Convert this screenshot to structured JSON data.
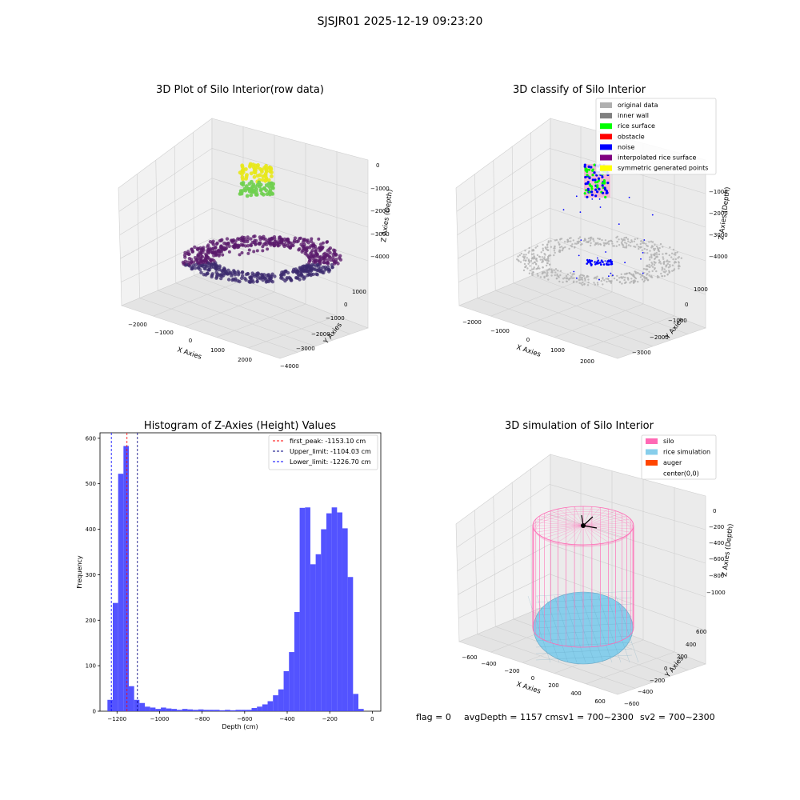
{
  "suptitle": "SJSJR01 2025-12-19 09:23:20",
  "footer": {
    "flag": "flag = 0",
    "avg_depth": "avgDepth = 1157 cmsv1 = 700~2300",
    "sv2": "sv2 = 700~2300"
  },
  "colors": {
    "raw_low": "#3b2a6e",
    "raw_mid": "#5a1a6b",
    "raw_top_green": "#6fcf4f",
    "raw_top_yellow": "#e8e81a",
    "original": "#b0b0b0",
    "inner_wall": "#808080",
    "rice_surface": "#00ff00",
    "obstacle": "#ff0000",
    "noise": "#0000ff",
    "interpolated": "#800080",
    "symmetric": "#ffff00",
    "hist_bar": "#4a4aff",
    "silo": "#ff69b4",
    "rice_sim": "#87ceeb",
    "auger": "#ff4500"
  },
  "chart_data": [
    {
      "type": "scatter3d",
      "title": "3D Plot of Silo Interior(row data)",
      "xlabel": "X Axies",
      "ylabel": "Y Axies",
      "zlabel": "Z Axies (Depth)",
      "x_ticks": [
        "−2000",
        "−1000",
        "0",
        "1000",
        "2000"
      ],
      "y_ticks": [
        "−4000",
        "−3000",
        "−2000",
        "−1000",
        "0",
        "1000"
      ],
      "z_ticks": [
        "0",
        "−1000",
        "−2000",
        "−3000",
        "−4000"
      ],
      "xlim": [
        -2500,
        2500
      ],
      "ylim": [
        -4000,
        1500
      ],
      "zlim": [
        -4500,
        0
      ]
    },
    {
      "type": "scatter3d",
      "title": "3D classify of Silo Interior",
      "xlabel": "X Axies",
      "ylabel": "Y Axies",
      "zlabel": "Z Axies (Depth)",
      "x_ticks": [
        "−2000",
        "−1000",
        "0",
        "1000",
        "2000"
      ],
      "y_ticks": [
        "−3000",
        "−2000",
        "−1000",
        "0",
        "1000"
      ],
      "z_ticks": [
        "−1000",
        "−2000",
        "−3000",
        "−4000"
      ],
      "legend": [
        {
          "label": "original data",
          "color": "#b0b0b0"
        },
        {
          "label": "inner wall",
          "color": "#808080"
        },
        {
          "label": "rice surface",
          "color": "#00ff00"
        },
        {
          "label": "obstacle",
          "color": "#ff0000"
        },
        {
          "label": "noise",
          "color": "#0000ff"
        },
        {
          "label": "interpolated rice surface",
          "color": "#800080"
        },
        {
          "label": "symmetric generated points",
          "color": "#ffff00"
        }
      ],
      "legend_loc": "upper right"
    },
    {
      "type": "bar",
      "title": "Histogram of Z-Axies (Height) Values",
      "xlabel": "Depth (cm)",
      "ylabel": "Frequency",
      "xlim": [
        -1280,
        40
      ],
      "ylim": [
        0,
        612
      ],
      "x_ticks": [
        -1200,
        -1000,
        -800,
        -600,
        -400,
        -200,
        0
      ],
      "x_tick_labels": [
        "−1200",
        "−1000",
        "−800",
        "−600",
        "−400",
        "−200",
        "0"
      ],
      "y_ticks": [
        0,
        100,
        200,
        300,
        400,
        500,
        600
      ],
      "y_tick_labels": [
        "0",
        "100",
        "200",
        "300",
        "400",
        "500",
        "600"
      ],
      "bin_start": -1245,
      "bin_width": 25.1,
      "values": [
        25,
        238,
        522,
        583,
        55,
        25,
        18,
        10,
        8,
        5,
        8,
        6,
        5,
        3,
        5,
        4,
        3,
        4,
        3,
        3,
        3,
        2,
        3,
        2,
        3,
        3,
        3,
        7,
        10,
        15,
        22,
        35,
        48,
        88,
        130,
        218,
        447,
        448,
        323,
        345,
        400,
        435,
        448,
        437,
        402,
        295,
        38,
        5
      ],
      "vlines": [
        {
          "x": -1153.1,
          "color": "#ff0000",
          "label": "first_peak: -1153.10 cm"
        },
        {
          "x": -1104.03,
          "color": "#000080",
          "label": "Upper_limit: -1104.03 cm"
        },
        {
          "x": -1226.7,
          "color": "#0000ff",
          "label": "Lower_limit: -1226.70 cm"
        }
      ],
      "legend_loc": "upper right"
    },
    {
      "type": "surface3d",
      "title": "3D simulation of Silo Interior",
      "xlabel": "X Axies",
      "ylabel": "Y Axies",
      "zlabel": "Z Axies (Depth)",
      "x_ticks": [
        "−600",
        "−400",
        "−200",
        "0",
        "200",
        "400",
        "600"
      ],
      "y_ticks": [
        "−600",
        "−400",
        "−200",
        "0",
        "200",
        "400",
        "600"
      ],
      "z_ticks": [
        "0",
        "−200",
        "−400",
        "−600",
        "−800",
        "−1000"
      ],
      "legend": [
        {
          "label": "silo",
          "color": "#ff69b4"
        },
        {
          "label": "rice simulation",
          "color": "#87ceeb"
        },
        {
          "label": "auger",
          "color": "#ff4500"
        },
        {
          "label": "center(0,0)",
          "color": ""
        }
      ],
      "legend_loc": "upper right"
    }
  ]
}
